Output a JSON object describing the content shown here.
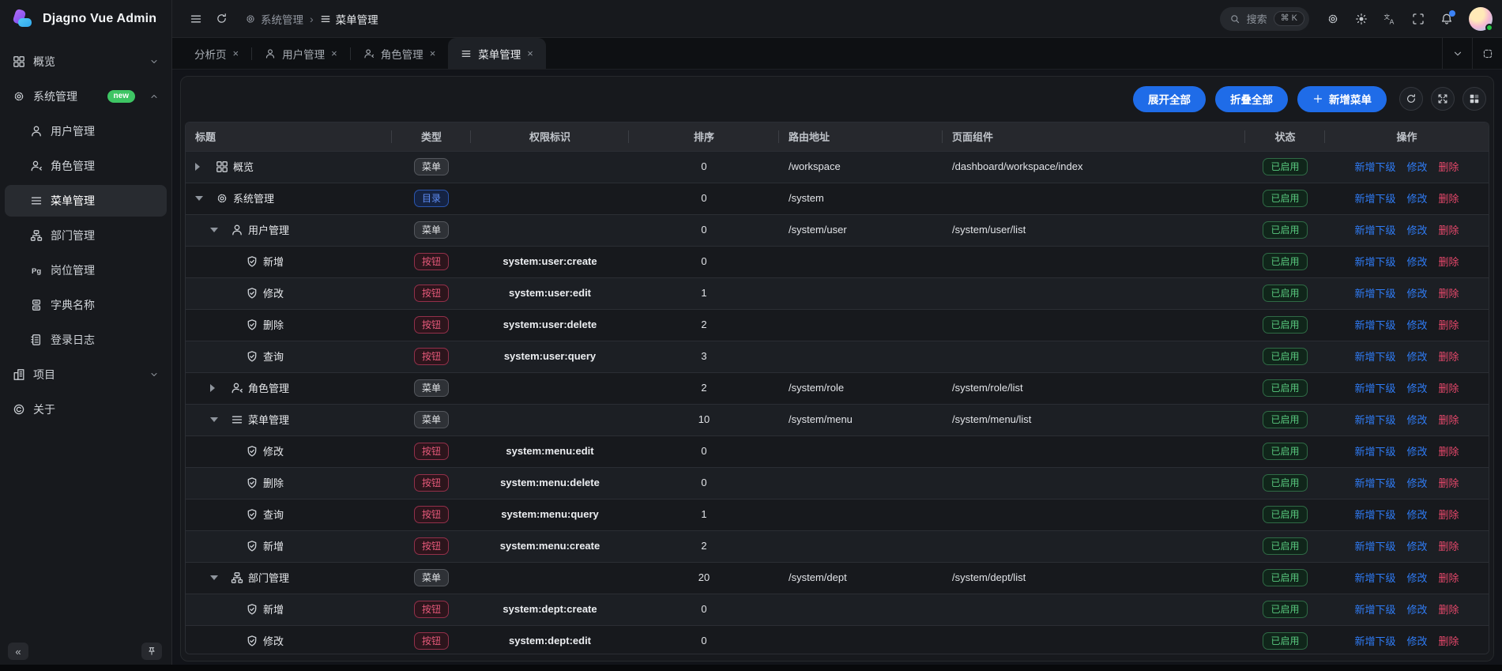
{
  "app": {
    "title": "Djagno Vue Admin"
  },
  "colors": {
    "primary": "#1f6ce8",
    "link_blue": "#2f7cf6",
    "link_red": "#e6486b",
    "success": "#58c87e",
    "badge_dir": "#5f8ef5",
    "badge_btn": "#e5597a",
    "new_badge": "#3ec564",
    "notification_dot": "#3b82f6",
    "online_dot": "#23c343"
  },
  "topbar": {
    "breadcrumb": [
      {
        "key": "system",
        "icon": "gear",
        "label": "系统管理"
      },
      {
        "key": "menu",
        "icon": "menu",
        "label": "菜单管理"
      }
    ],
    "search": {
      "placeholder": "搜索",
      "shortcut": "⌘ K"
    },
    "icons": [
      "settings",
      "theme-sun",
      "translate",
      "fullscreen",
      "bell",
      "avatar"
    ]
  },
  "tabbar": {
    "tabs": [
      {
        "key": "analysis",
        "label": "分析页",
        "icon": null,
        "active": false
      },
      {
        "key": "user",
        "label": "用户管理",
        "icon": "user",
        "active": false
      },
      {
        "key": "role",
        "label": "角色管理",
        "icon": "role",
        "active": false
      },
      {
        "key": "menu",
        "label": "菜单管理",
        "icon": "menu",
        "active": true
      }
    ],
    "close_glyph": "×"
  },
  "sidebar": {
    "collapse_label": "«",
    "items": [
      {
        "key": "overview",
        "label": "概览",
        "icon": "grid",
        "chevron": "down"
      },
      {
        "key": "system",
        "label": "系统管理",
        "icon": "gear",
        "badge": "new",
        "chevron": "up",
        "children": [
          {
            "key": "user",
            "label": "用户管理",
            "icon": "user"
          },
          {
            "key": "role",
            "label": "角色管理",
            "icon": "role"
          },
          {
            "key": "menu",
            "label": "菜单管理",
            "icon": "menu",
            "active": true
          },
          {
            "key": "dept",
            "label": "部门管理",
            "icon": "dept"
          },
          {
            "key": "post",
            "label": "岗位管理",
            "icon": "pg"
          },
          {
            "key": "dict",
            "label": "字典名称",
            "icon": "dict"
          },
          {
            "key": "log",
            "label": "登录日志",
            "icon": "log"
          }
        ]
      },
      {
        "key": "project",
        "label": "项目",
        "icon": "project",
        "chevron": "down"
      },
      {
        "key": "about",
        "label": "关于",
        "icon": "about"
      }
    ]
  },
  "toolbar": {
    "expand_all": "展开全部",
    "collapse_all": "折叠全部",
    "add_menu": "新增菜单",
    "icon_buttons": [
      "refresh",
      "expand-arrows",
      "columns"
    ]
  },
  "table": {
    "headers": [
      "标题",
      "类型",
      "权限标识",
      "排序",
      "路由地址",
      "页面组件",
      "状态",
      "操作"
    ],
    "status_label": "已启用",
    "action_labels": [
      "新增下级",
      "修改",
      "删除"
    ],
    "rows": [
      {
        "indent": 0,
        "expander": "right",
        "icon": "grid",
        "title": "概览",
        "type": "菜单",
        "permission": "",
        "order": "0",
        "route": "/workspace",
        "component": "/dashboard/workspace/index"
      },
      {
        "indent": 0,
        "expander": "down",
        "icon": "gear",
        "title": "系统管理",
        "type": "目录",
        "permission": "",
        "order": "0",
        "route": "/system",
        "component": ""
      },
      {
        "indent": 1,
        "expander": "down",
        "icon": "user",
        "title": "用户管理",
        "type": "菜单",
        "permission": "",
        "order": "0",
        "route": "/system/user",
        "component": "/system/user/list"
      },
      {
        "indent": 2,
        "expander": null,
        "icon": "shield",
        "title": "新增",
        "type": "按钮",
        "permission": "system:user:create",
        "order": "0",
        "route": "",
        "component": ""
      },
      {
        "indent": 2,
        "expander": null,
        "icon": "shield",
        "title": "修改",
        "type": "按钮",
        "permission": "system:user:edit",
        "order": "1",
        "route": "",
        "component": ""
      },
      {
        "indent": 2,
        "expander": null,
        "icon": "shield",
        "title": "删除",
        "type": "按钮",
        "permission": "system:user:delete",
        "order": "2",
        "route": "",
        "component": ""
      },
      {
        "indent": 2,
        "expander": null,
        "icon": "shield",
        "title": "查询",
        "type": "按钮",
        "permission": "system:user:query",
        "order": "3",
        "route": "",
        "component": ""
      },
      {
        "indent": 1,
        "expander": "right",
        "icon": "role",
        "title": "角色管理",
        "type": "菜单",
        "permission": "",
        "order": "2",
        "route": "/system/role",
        "component": "/system/role/list"
      },
      {
        "indent": 1,
        "expander": "down",
        "icon": "menu",
        "title": "菜单管理",
        "type": "菜单",
        "permission": "",
        "order": "10",
        "route": "/system/menu",
        "component": "/system/menu/list"
      },
      {
        "indent": 2,
        "expander": null,
        "icon": "shield",
        "title": "修改",
        "type": "按钮",
        "permission": "system:menu:edit",
        "order": "0",
        "route": "",
        "component": ""
      },
      {
        "indent": 2,
        "expander": null,
        "icon": "shield",
        "title": "删除",
        "type": "按钮",
        "permission": "system:menu:delete",
        "order": "0",
        "route": "",
        "component": ""
      },
      {
        "indent": 2,
        "expander": null,
        "icon": "shield",
        "title": "查询",
        "type": "按钮",
        "permission": "system:menu:query",
        "order": "1",
        "route": "",
        "component": ""
      },
      {
        "indent": 2,
        "expander": null,
        "icon": "shield",
        "title": "新增",
        "type": "按钮",
        "permission": "system:menu:create",
        "order": "2",
        "route": "",
        "component": ""
      },
      {
        "indent": 1,
        "expander": "down",
        "icon": "dept",
        "title": "部门管理",
        "type": "菜单",
        "permission": "",
        "order": "20",
        "route": "/system/dept",
        "component": "/system/dept/list"
      },
      {
        "indent": 2,
        "expander": null,
        "icon": "shield",
        "title": "新增",
        "type": "按钮",
        "permission": "system:dept:create",
        "order": "0",
        "route": "",
        "component": ""
      },
      {
        "indent": 2,
        "expander": null,
        "icon": "shield",
        "title": "修改",
        "type": "按钮",
        "permission": "system:dept:edit",
        "order": "0",
        "route": "",
        "component": ""
      }
    ]
  }
}
